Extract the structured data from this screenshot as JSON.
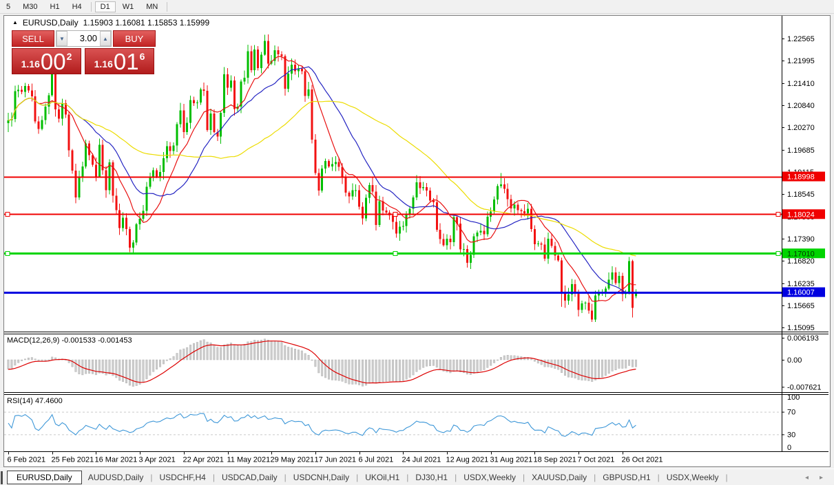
{
  "toolbar": {
    "buttons": [
      {
        "label": "5",
        "active": false
      },
      {
        "label": "M30",
        "active": false
      },
      {
        "label": "H1",
        "active": false
      },
      {
        "label": "H4",
        "active": false
      },
      {
        "label": "D1",
        "active": true
      },
      {
        "label": "W1",
        "active": false
      },
      {
        "label": "MN",
        "active": false
      }
    ],
    "separators_after": [
      "H4",
      "MN"
    ]
  },
  "window": {
    "title": {
      "collapse_marker": "▲",
      "symbol": "EURUSD,Daily",
      "ohlc_text": "1.15903 1.16081 1.15853 1.15999"
    },
    "trade_panel": {
      "sell_label": "SELL",
      "buy_label": "BUY",
      "volume": "3.00",
      "spin_down": "▼",
      "spin_up": "▲",
      "sell_price": {
        "frac": "1.16",
        "big": "00",
        "sup": "2"
      },
      "buy_price": {
        "frac": "1.16",
        "big": "01",
        "sup": "6"
      }
    }
  },
  "chart_data": {
    "type": "candlestick",
    "symbol": "EURUSD",
    "timeframe": "Daily",
    "last_ohlc": {
      "open": 1.15903,
      "high": 1.16081,
      "low": 1.15853,
      "close": 1.15999
    },
    "price_axis": {
      "ylim": [
        1.14987,
        1.23152
      ],
      "ticks": [
        "1.22565",
        "1.21995",
        "1.21410",
        "1.20840",
        "1.20270",
        "1.19685",
        "1.19115",
        "1.18545",
        "1.17960",
        "1.17390",
        "1.16820",
        "1.16235",
        "1.15665",
        "1.15095"
      ]
    },
    "x_axis": {
      "labels": [
        "6 Feb 2021",
        "25 Feb 2021",
        "16 Mar 2021",
        "3 Apr 2021",
        "22 Apr 2021",
        "11 May 2021",
        "29 May 2021",
        "17 Jun 2021",
        "6 Jul 2021",
        "24 Jul 2021",
        "12 Aug 2021",
        "31 Aug 2021",
        "18 Sep 2021",
        "7 Oct 2021",
        "26 Oct 2021"
      ],
      "label_every": 13
    },
    "candles": {
      "up_color": "#00be00",
      "down_color": "#f21212",
      "wick_min": 0.0004,
      "wick_var": 0.0016,
      "closes": [
        1.2045,
        1.2048,
        1.212,
        1.2124,
        1.2119,
        1.2134,
        1.2122,
        1.2107,
        1.2042,
        1.2023,
        1.2046,
        1.208,
        1.211,
        1.2175,
        1.2073,
        1.2049,
        1.2089,
        1.206,
        1.1967,
        1.1915,
        1.1846,
        1.19,
        1.1926,
        1.1985,
        1.1955,
        1.193,
        1.19,
        1.1982,
        1.1916,
        1.1864,
        1.1936,
        1.185,
        1.1813,
        1.1766,
        1.1793,
        1.1764,
        1.1716,
        1.1729,
        1.1776,
        1.179,
        1.1811,
        1.1873,
        1.19,
        1.1916,
        1.1899,
        1.1911,
        1.1947,
        1.1978,
        1.1966,
        1.198,
        1.2035,
        1.2071,
        1.2015,
        1.2039,
        1.2097,
        1.2089,
        1.2091,
        1.2125,
        1.2121,
        1.202,
        1.2063,
        1.2015,
        1.2003,
        1.2064,
        1.2164,
        1.2129,
        1.2148,
        1.2074,
        1.208,
        1.2145,
        1.2155,
        1.2224,
        1.2175,
        1.2228,
        1.218,
        1.2215,
        1.225,
        1.2192,
        1.2199,
        1.2226,
        1.2216,
        1.2211,
        1.2127,
        1.2166,
        1.2189,
        1.2172,
        1.2178,
        1.2172,
        1.2108,
        1.2125,
        1.1995,
        1.1909,
        1.1863,
        1.192,
        1.194,
        1.1926,
        1.1932,
        1.1937,
        1.1925,
        1.1898,
        1.1858,
        1.1848,
        1.1864,
        1.1864,
        1.1822,
        1.1791,
        1.1845,
        1.1878,
        1.1861,
        1.1774,
        1.1836,
        1.1812,
        1.1806,
        1.1799,
        1.1782,
        1.1752,
        1.177,
        1.1772,
        1.18,
        1.1816,
        1.1846,
        1.1885,
        1.187,
        1.1872,
        1.1863,
        1.1838,
        1.1833,
        1.1762,
        1.1738,
        1.1722,
        1.1739,
        1.173,
        1.1795,
        1.1778,
        1.1711,
        1.1712,
        1.1677,
        1.1697,
        1.1745,
        1.1755,
        1.1759,
        1.175,
        1.1796,
        1.1809,
        1.184,
        1.1875,
        1.1879,
        1.1868,
        1.1841,
        1.1817,
        1.1827,
        1.1813,
        1.181,
        1.1805,
        1.1816,
        1.1764,
        1.1725,
        1.1726,
        1.1724,
        1.1687,
        1.1739,
        1.172,
        1.1695,
        1.1683,
        1.1599,
        1.1579,
        1.1595,
        1.1621,
        1.1598,
        1.1555,
        1.1572,
        1.1573,
        1.1553,
        1.153,
        1.1592,
        1.1597,
        1.1601,
        1.161,
        1.1633,
        1.1652,
        1.1624,
        1.1643,
        1.1596,
        1.1601,
        1.1681,
        1.156,
        1.15999
      ],
      "overrides": {
        "0": [
          1.2038,
          1.2064,
          1.2015,
          1.2045
        ],
        "13": [
          1.211,
          1.2183,
          1.2106,
          1.2175
        ],
        "36": [
          1.1764,
          1.177,
          1.1704,
          1.1716
        ],
        "76": [
          1.2215,
          1.2266,
          1.2212,
          1.225
        ],
        "90": [
          1.2125,
          1.2136,
          1.1985,
          1.1995
        ],
        "136": [
          1.1712,
          1.1722,
          1.1664,
          1.1677
        ],
        "146": [
          1.1875,
          1.1909,
          1.187,
          1.1879
        ],
        "164": [
          1.1683,
          1.169,
          1.1563,
          1.1599
        ],
        "173": [
          1.1553,
          1.1571,
          1.1524,
          1.153
        ],
        "184": [
          1.1602,
          1.1692,
          1.1595,
          1.1681
        ],
        "185": [
          1.1681,
          1.1685,
          1.1535,
          1.156
        ],
        "186": [
          1.15903,
          1.16081,
          1.15853,
          1.15999
        ]
      }
    },
    "moving_averages": [
      {
        "period": 10,
        "color": "#e81010"
      },
      {
        "period": 21,
        "color": "#2424c2"
      },
      {
        "period": 50,
        "color": "#ecdc00"
      }
    ],
    "hlines": [
      {
        "price": 1.18998,
        "label": "1.18998",
        "color": "#f00000",
        "width": 2,
        "handles": false,
        "label_text": "#ffffff"
      },
      {
        "price": 1.18024,
        "label": "1.18024",
        "color": "#f00000",
        "width": 2,
        "handles": true,
        "label_text": "#ffffff"
      },
      {
        "price": 1.1701,
        "label": "1.17010",
        "color": "#00d400",
        "width": 3,
        "handles": true,
        "label_text": "#003300"
      },
      {
        "price": 1.16007,
        "label": "1.16007",
        "color": "#0000e0",
        "width": 3,
        "handles": false,
        "label_text": "#ffffff"
      }
    ],
    "macd": {
      "label": "MACD(12,26,9) -0.001533 -0.001453",
      "params": [
        12,
        26,
        9
      ],
      "values_text": [
        "-0.001533",
        "-0.001453"
      ],
      "axis_labels": [
        "0.006193",
        "0.00",
        "-0.007621"
      ],
      "bar_color": "#cdcdcd",
      "bar_stroke": "#b2b2b2",
      "line_color": "#dd0000",
      "seed": [
        -0.0012,
        0.0018
      ]
    },
    "rsi": {
      "label": "RSI(14) 47.4600",
      "period": 14,
      "value": 47.46,
      "axis_labels": [
        "100",
        "70",
        "30",
        "0"
      ],
      "levels": [
        70,
        30
      ],
      "line_color": "#3d97d8",
      "level_color": "#c9c9c9",
      "seed": [
        0.0004,
        0.0006
      ]
    }
  },
  "tabs": {
    "items": [
      {
        "label": "EURUSD,Daily",
        "active": true
      },
      {
        "label": "AUDUSD,Daily",
        "active": false
      },
      {
        "label": "USDCHF,H4",
        "active": false
      },
      {
        "label": "USDCAD,Daily",
        "active": false
      },
      {
        "label": "USDCNH,Daily",
        "active": false
      },
      {
        "label": "UKOil,H1",
        "active": false
      },
      {
        "label": "DJ30,H1",
        "active": false
      },
      {
        "label": "USDX,Weekly",
        "active": false
      },
      {
        "label": "XAUUSD,Daily",
        "active": false
      },
      {
        "label": "GBPUSD,H1",
        "active": false
      },
      {
        "label": "USDX,Weekly",
        "active": false
      }
    ],
    "separator": "|",
    "arrow_left": "◂",
    "arrow_right": "▸"
  }
}
